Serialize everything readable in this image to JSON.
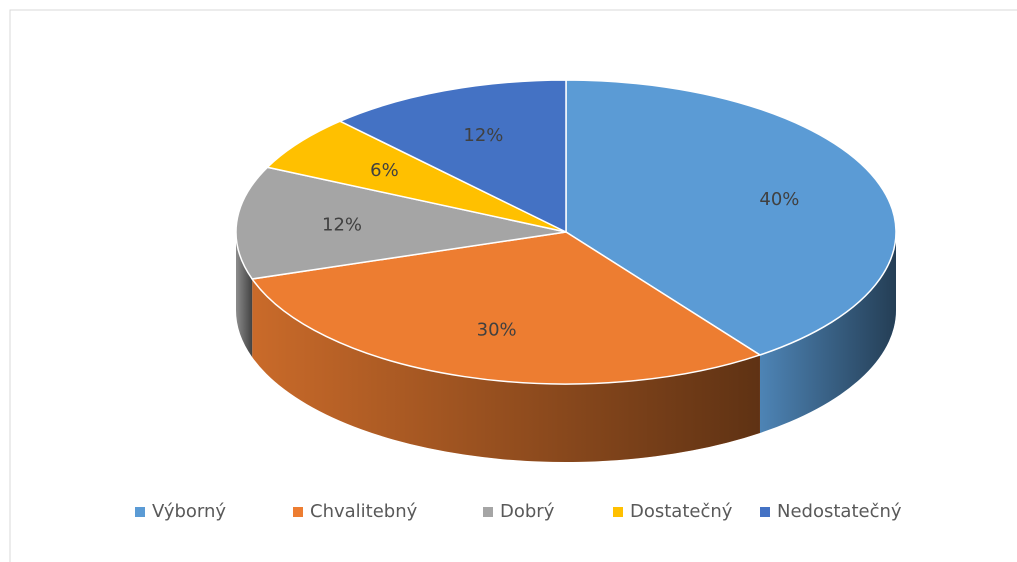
{
  "chart_data": {
    "type": "pie",
    "categories": [
      "Výborný",
      "Chvalitebný",
      "Dobrý",
      "Dostatečný",
      "Nedostatečný"
    ],
    "values": [
      40,
      30,
      12,
      6,
      12
    ],
    "value_labels": [
      "40%",
      "30%",
      "12%",
      "6%",
      "12%"
    ],
    "colors": [
      "#5b9bd5",
      "#ed7d31",
      "#a5a5a5",
      "#ffc000",
      "#4472c4"
    ],
    "legend": "bottom"
  }
}
